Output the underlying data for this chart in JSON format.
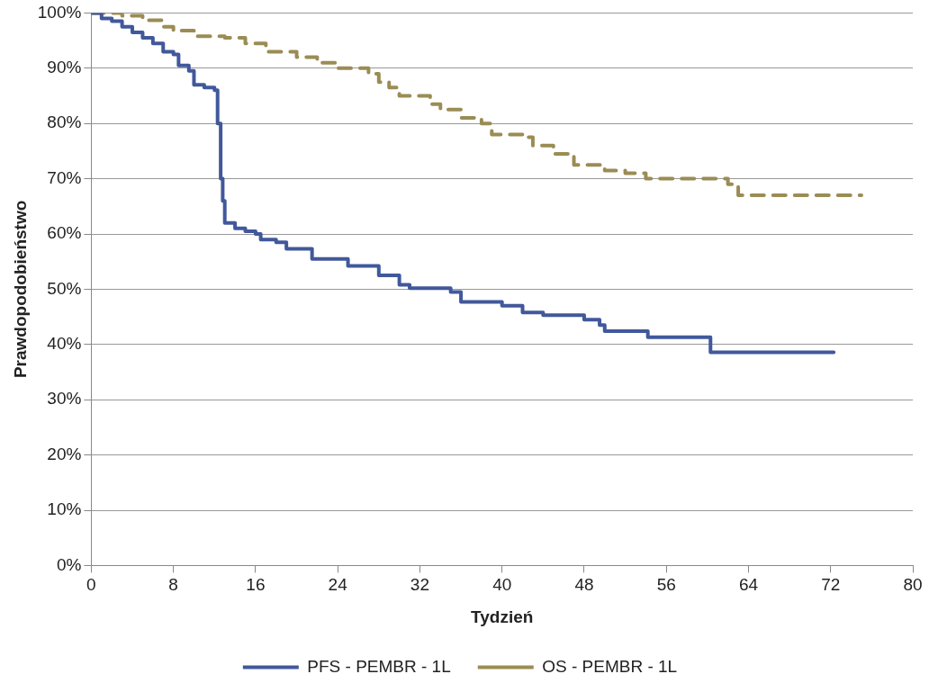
{
  "chart_data": {
    "type": "step",
    "xlabel": "Tydzień",
    "ylabel": "Prawdopodobieństwo",
    "xlim": [
      0,
      80
    ],
    "xticks": [
      0,
      8,
      16,
      24,
      32,
      40,
      48,
      56,
      64,
      72,
      80
    ],
    "ylim": [
      0,
      100
    ],
    "yticks": [
      {
        "value": 0,
        "label": "0%"
      },
      {
        "value": 10,
        "label": "10%"
      },
      {
        "value": 20,
        "label": "20%"
      },
      {
        "value": 30,
        "label": "30%"
      },
      {
        "value": 40,
        "label": "40%"
      },
      {
        "value": 50,
        "label": "50%"
      },
      {
        "value": 60,
        "label": "60%"
      },
      {
        "value": 70,
        "label": "70%"
      },
      {
        "value": 80,
        "label": "80%"
      },
      {
        "value": 90,
        "label": "90%"
      },
      {
        "value": 100,
        "label": "100%"
      }
    ],
    "grid": "y",
    "legend": "bottom",
    "marker": "none",
    "series": [
      {
        "name": "PFS - PEMBR - 1L",
        "color": "#41589b",
        "line_style": "solid",
        "x": [
          0,
          1,
          2,
          3,
          4,
          5,
          6,
          7,
          8,
          8.5,
          9.5,
          10,
          11,
          12,
          12.3,
          12.6,
          12.8,
          13,
          14,
          15,
          16,
          16.5,
          18,
          19,
          21.5,
          25,
          28,
          30,
          31,
          35,
          36,
          40,
          42,
          44,
          48,
          49.5,
          50,
          54.2,
          60.3,
          72.3
        ],
        "values": [
          100,
          99,
          98.5,
          97.5,
          96.5,
          95.5,
          94.5,
          93,
          92.5,
          90.5,
          89.5,
          87,
          86.5,
          86,
          80,
          70,
          66,
          62,
          61,
          60.5,
          60,
          59,
          58.5,
          57.3,
          55.5,
          54.2,
          52.5,
          50.8,
          50.2,
          49.5,
          47.7,
          47,
          45.8,
          45.3,
          44.5,
          43.5,
          42.4,
          41.3,
          38.6,
          38.6
        ]
      },
      {
        "name": "OS - PEMBR - 1L",
        "color": "#9a8c54",
        "line_style": "dashed",
        "x": [
          0,
          3,
          5,
          7,
          8,
          10,
          13,
          15,
          17,
          20,
          22,
          24,
          27,
          28,
          29,
          30,
          33,
          34,
          36,
          38,
          39,
          42,
          43,
          45,
          47,
          50,
          52,
          54,
          60,
          62,
          63,
          75
        ],
        "values": [
          100,
          99.5,
          98.7,
          97.5,
          96.8,
          95.8,
          95.5,
          94.5,
          93,
          92,
          91,
          90,
          89,
          87.5,
          86.5,
          85,
          83.5,
          82.5,
          81,
          80,
          78,
          77.5,
          76,
          74.5,
          72.5,
          71.5,
          71,
          70,
          70,
          69,
          67,
          67
        ]
      }
    ]
  }
}
